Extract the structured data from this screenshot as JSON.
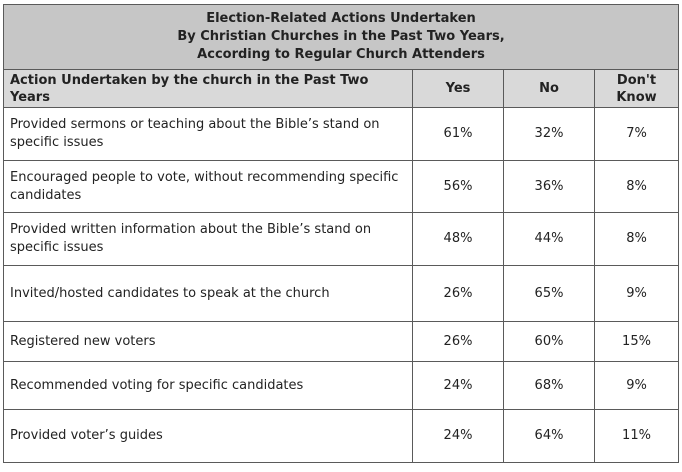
{
  "title": {
    "line1": "Election-Related Actions Undertaken",
    "line2": "By Christian Churches in the Past Two Years,",
    "line3": "According to Regular Church Attenders"
  },
  "columns": {
    "action": "Action Undertaken by the church in the Past Two Years",
    "yes": "Yes",
    "no": "No",
    "dont_know_line1": "Don't",
    "dont_know_line2": "Know"
  },
  "rows": [
    {
      "action": "Provided sermons or teaching about the Bible’s stand on specific issues",
      "yes": "61%",
      "no": "32%",
      "dont_know": "7%"
    },
    {
      "action": "Encouraged people to vote, without recommending specific candidates",
      "yes": "56%",
      "no": "36%",
      "dont_know": "8%"
    },
    {
      "action": "Provided written information about the Bible’s stand on specific issues",
      "yes": "48%",
      "no": "44%",
      "dont_know": "8%"
    },
    {
      "action": "Invited/hosted candidates to speak at the church",
      "yes": "26%",
      "no": "65%",
      "dont_know": "9%"
    },
    {
      "action": "Registered new voters",
      "yes": "26%",
      "no": "60%",
      "dont_know": "15%"
    },
    {
      "action": "Recommended voting for specific candidates",
      "yes": "24%",
      "no": "68%",
      "dont_know": "9%"
    },
    {
      "action": "Provided voter’s guides",
      "yes": "24%",
      "no": "64%",
      "dont_know": "11%"
    }
  ]
}
